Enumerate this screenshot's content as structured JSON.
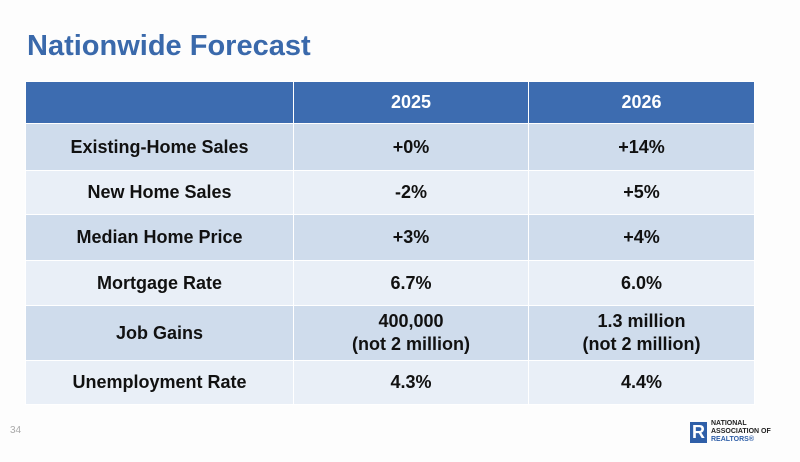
{
  "title": "Nationwide Forecast",
  "table": {
    "headers": [
      "",
      "2025",
      "2026"
    ],
    "rows": [
      {
        "label": "Existing-Home Sales",
        "y2025": "+0%",
        "y2026": "+14%"
      },
      {
        "label": "New Home Sales",
        "y2025": "-2%",
        "y2026": "+5%"
      },
      {
        "label": "Median Home Price",
        "y2025": "+3%",
        "y2026": "+4%"
      },
      {
        "label": "Mortgage Rate",
        "y2025": "6.7%",
        "y2026": "6.0%"
      },
      {
        "label": "Job Gains",
        "y2025": "400,000",
        "y2025_note": "(not 2 million)",
        "y2026": "1.3 million",
        "y2026_note": "(not 2 million)"
      },
      {
        "label": "Unemployment Rate",
        "y2025": "4.3%",
        "y2026": "4.4%"
      }
    ]
  },
  "page_number": "34",
  "logo": {
    "mark": "R",
    "line1": "NATIONAL",
    "line2": "ASSOCIATION OF",
    "line3": "REALTORS®"
  },
  "colors": {
    "title": "#3a69ab",
    "header": "#3d6cb0",
    "row_dark": "#cfdcec",
    "row_light": "#e9eff7"
  }
}
